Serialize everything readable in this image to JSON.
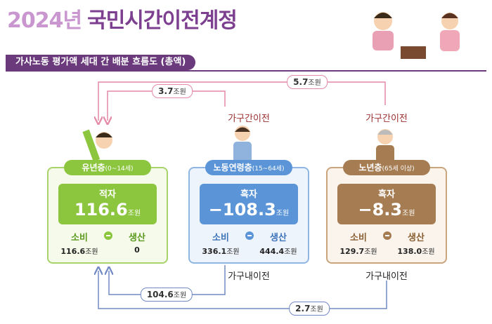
{
  "header": {
    "title_year": "2024년",
    "title_main": "국민시간이전계정",
    "subtitle": "가사노동 평가액 세대 간 배분 흐름도 (총액)"
  },
  "groups": [
    {
      "name": "유년층",
      "range": "(0~14세)",
      "balance_label": "적자",
      "balance_value": "116.6",
      "balance_unit": "조원",
      "consumption_label": "소비",
      "consumption_value": "116.6",
      "consumption_unit": "조원",
      "production_label": "생산",
      "production_value": "0"
    },
    {
      "name": "노동연령층",
      "range": "(15~64세)",
      "balance_label": "흑자",
      "balance_value": "−108.3",
      "balance_unit": "조원",
      "consumption_label": "소비",
      "consumption_value": "336.1",
      "consumption_unit": "조원",
      "production_label": "생산",
      "production_value": "444.4",
      "production_unit": "조원",
      "upper_label": "가구간이전",
      "lower_label": "가구내이전"
    },
    {
      "name": "노년층",
      "range": "(65세 이상)",
      "balance_label": "흑자",
      "balance_value": "−8.3",
      "balance_unit": "조원",
      "consumption_label": "소비",
      "consumption_value": "129.7",
      "consumption_unit": "조원",
      "production_label": "생산",
      "production_value": "138.0",
      "production_unit": "조원",
      "upper_label": "가구간이전",
      "lower_label": "가구내이전"
    }
  ],
  "flows": [
    {
      "value": "5.7",
      "unit": "조원"
    },
    {
      "value": "3.7",
      "unit": "조원"
    },
    {
      "value": "104.6",
      "unit": "조원"
    },
    {
      "value": "2.7",
      "unit": "조원"
    }
  ]
}
